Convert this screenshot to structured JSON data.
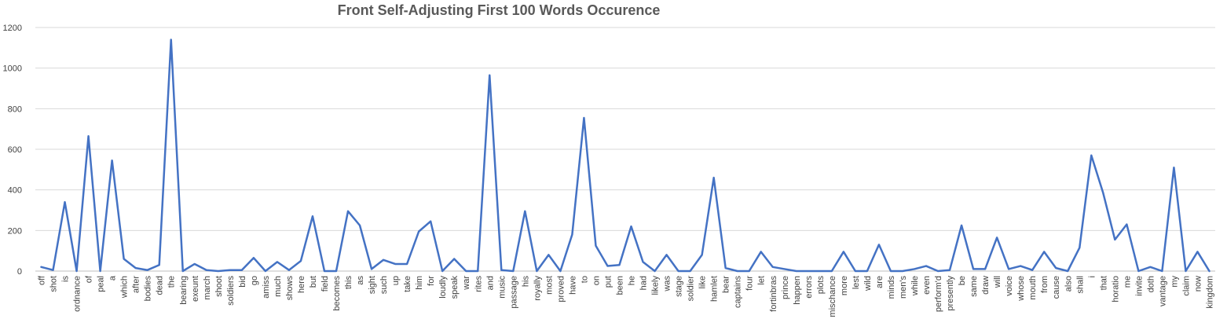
{
  "chart_data": {
    "type": "line",
    "title": "Front Self-Adjusting First 100 Words Occurence",
    "xlabel": "",
    "ylabel": "",
    "ylim": [
      0,
      1200
    ],
    "yticks": [
      0,
      200,
      400,
      600,
      800,
      1000,
      1200
    ],
    "grid": true,
    "legend": "none",
    "colors": {
      "line": "#4472c4",
      "grid": "#d9d9d9"
    },
    "categories": [
      "off",
      "shot",
      "is",
      "ordnance",
      "of",
      "peal",
      "a",
      "which",
      "after",
      "bodies",
      "dead",
      "the",
      "bearing",
      "exeunt",
      "march",
      "shoot",
      "soldiers",
      "bid",
      "go",
      "amiss",
      "much",
      "shows",
      "here",
      "but",
      "field",
      "becomes",
      "this",
      "as",
      "sight",
      "such",
      "up",
      "take",
      "him",
      "for",
      "loudly",
      "speak",
      "war",
      "rites",
      "and",
      "music",
      "passage",
      "his",
      "royally",
      "most",
      "proved",
      "have",
      "to",
      "on",
      "put",
      "been",
      "he",
      "had",
      "likely",
      "was",
      "stage",
      "soldier",
      "like",
      "hamlet",
      "bear",
      "captains",
      "four",
      "let",
      "fortinbras",
      "prince",
      "happen",
      "errors",
      "plots",
      "mischance",
      "more",
      "lest",
      "wild",
      "are",
      "minds",
      "men's",
      "while",
      "even",
      "perform'd",
      "presently",
      "be",
      "same",
      "draw",
      "will",
      "voice",
      "whose",
      "mouth",
      "from",
      "cause",
      "also",
      "shall",
      "i",
      "that",
      "horatio",
      "me",
      "invite",
      "doth",
      "vantage",
      "my",
      "claim",
      "now",
      "kingdom"
    ],
    "series": [
      {
        "values": [
          20,
          5,
          340,
          0,
          665,
          0,
          545,
          60,
          15,
          5,
          30,
          1140,
          0,
          35,
          5,
          0,
          5,
          5,
          65,
          0,
          45,
          5,
          50,
          270,
          0,
          0,
          295,
          225,
          10,
          55,
          35,
          35,
          195,
          245,
          0,
          60,
          0,
          0,
          965,
          5,
          0,
          295,
          0,
          80,
          0,
          180,
          755,
          125,
          25,
          30,
          220,
          45,
          0,
          80,
          0,
          0,
          80,
          460,
          15,
          0,
          0,
          95,
          20,
          10,
          0,
          0,
          0,
          0,
          95,
          0,
          0,
          130,
          0,
          0,
          10,
          25,
          0,
          5,
          225,
          10,
          10,
          165,
          10,
          25,
          5,
          95,
          15,
          0,
          115,
          570,
          385,
          155,
          230,
          0,
          20,
          0,
          510,
          0,
          95,
          0
        ]
      }
    ]
  }
}
